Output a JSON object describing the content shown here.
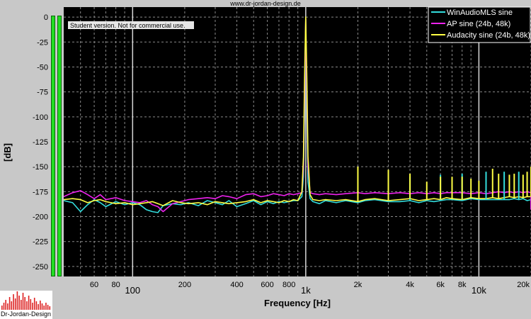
{
  "site": {
    "url": "www.dr-jordan-design.de"
  },
  "brand": {
    "logo_text": "Dr-Jordan-Design"
  },
  "notice": {
    "student": "Student version. Not for commercial use."
  },
  "colors": {
    "plot_bg": "#000000",
    "grid": "#8a8a8a",
    "grid_major": "#d8d8d8",
    "frame_bg": "#c8c8c8",
    "meter": "#22dd22"
  },
  "chart_data": {
    "type": "line",
    "title": "",
    "xlabel": "Frequency [Hz]",
    "ylabel": "[dB]",
    "xscale": "log",
    "xlim": [
      40,
      20000
    ],
    "ylim": [
      -260,
      10
    ],
    "grid": true,
    "legend_position": "top-right",
    "y_ticks": [
      0,
      -25,
      -50,
      -75,
      -100,
      -125,
      -150,
      -175,
      -200,
      -225,
      -250
    ],
    "y_tick_labels": [
      "0",
      "-25",
      "-50",
      "-75",
      "-100",
      "-125",
      "-150",
      "-175",
      "-200",
      "-225",
      "-250"
    ],
    "x_ticks": [
      60,
      80,
      100,
      200,
      400,
      600,
      800,
      1000,
      2000,
      4000,
      6000,
      8000,
      10000,
      20000
    ],
    "x_tick_labels": [
      "60",
      "80",
      "100",
      "200",
      "400",
      "600",
      "800",
      "1k",
      "2k",
      "4k",
      "6k",
      "8k",
      "10k",
      "20k"
    ],
    "x_major_ticks": [
      100,
      1000,
      10000
    ],
    "series": [
      {
        "name": "WinAudioMLS sine",
        "color": "#33dddd",
        "x": [
          40,
          45,
          50,
          55,
          60,
          65,
          70,
          80,
          90,
          100,
          110,
          120,
          130,
          140,
          150,
          170,
          190,
          210,
          240,
          270,
          300,
          330,
          360,
          400,
          450,
          500,
          550,
          600,
          650,
          700,
          750,
          800,
          850,
          900,
          950,
          970,
          985,
          1000,
          1015,
          1030,
          1060,
          1100,
          1200,
          1300,
          1500,
          1700,
          2000,
          2200,
          2500,
          3000,
          3500,
          4000,
          4500,
          5000,
          5500,
          6000,
          6500,
          7000,
          8000,
          9000,
          10000,
          11000,
          12000,
          13000,
          14000,
          15000,
          16000,
          17000,
          18000,
          19000,
          20000
        ],
        "y": [
          -184,
          -186,
          -195,
          -188,
          -183,
          -186,
          -190,
          -185,
          -188,
          -186,
          -188,
          -193,
          -195,
          -196,
          -189,
          -187,
          -188,
          -186,
          -189,
          -184,
          -186,
          -188,
          -184,
          -190,
          -187,
          -184,
          -188,
          -185,
          -187,
          -185,
          -186,
          -185,
          -184,
          -184,
          -180,
          -160,
          -100,
          -3,
          -100,
          -165,
          -182,
          -185,
          -187,
          -184,
          -186,
          -184,
          -186,
          -184,
          -183,
          -185,
          -185,
          -184,
          -186,
          -184,
          -185,
          -184,
          -183,
          -183,
          -184,
          -182,
          -183,
          -183,
          -183,
          -183,
          -183,
          -183,
          -182,
          -183,
          -182,
          -184,
          -183
        ]
      },
      {
        "name": "AP sine (24b, 48k)",
        "color": "#ee22ee",
        "x": [
          40,
          45,
          50,
          55,
          60,
          65,
          70,
          80,
          90,
          100,
          110,
          120,
          130,
          140,
          150,
          170,
          190,
          210,
          240,
          270,
          300,
          330,
          360,
          400,
          450,
          500,
          550,
          600,
          650,
          700,
          750,
          800,
          850,
          900,
          950,
          970,
          985,
          1000,
          1015,
          1030,
          1060,
          1100,
          1200,
          1300,
          1500,
          1700,
          2000,
          2200,
          2500,
          3000,
          3500,
          4000,
          4500,
          5000,
          5500,
          6000,
          6500,
          7000,
          8000,
          9000,
          10000,
          11000,
          12000,
          13000,
          14000,
          15000,
          16000,
          17000,
          18000,
          19000,
          20000
        ],
        "y": [
          -180,
          -176,
          -174,
          -178,
          -182,
          -178,
          -183,
          -181,
          -184,
          -185,
          -186,
          -184,
          -188,
          -190,
          -195,
          -187,
          -185,
          -183,
          -182,
          -181,
          -182,
          -179,
          -180,
          -182,
          -178,
          -177,
          -180,
          -179,
          -177,
          -178,
          -179,
          -177,
          -178,
          -177,
          -176,
          -150,
          -80,
          -2,
          -80,
          -150,
          -176,
          -177,
          -178,
          -177,
          -178,
          -177,
          -176,
          -177,
          -176,
          -177,
          -176,
          -177,
          -176,
          -177,
          -176,
          -177,
          -176,
          -176,
          -176,
          -177,
          -176,
          -177,
          -176,
          -175,
          -176,
          -175,
          -176,
          -175,
          -176,
          -175,
          -176
        ]
      },
      {
        "name": "Audacity sine (24b, 48k)",
        "color": "#ffff44",
        "x": [
          40,
          45,
          50,
          55,
          60,
          65,
          70,
          80,
          90,
          100,
          110,
          120,
          130,
          140,
          150,
          170,
          190,
          210,
          240,
          270,
          300,
          330,
          360,
          400,
          450,
          500,
          550,
          600,
          650,
          700,
          750,
          800,
          850,
          900,
          950,
          970,
          985,
          1000,
          1015,
          1030,
          1060,
          1100,
          1200,
          1300,
          1500,
          1700,
          2000,
          2200,
          2500,
          3000,
          3500,
          4000,
          4500,
          5000,
          5500,
          6000,
          6500,
          7000,
          8000,
          9000,
          10000,
          11000,
          12000,
          13000,
          14000,
          15000,
          16000,
          17000,
          18000,
          19000,
          20000
        ],
        "y": [
          -183,
          -182,
          -183,
          -186,
          -184,
          -183,
          -185,
          -187,
          -186,
          -188,
          -187,
          -186,
          -185,
          -187,
          -189,
          -184,
          -186,
          -187,
          -186,
          -188,
          -185,
          -186,
          -187,
          -186,
          -185,
          -183,
          -186,
          -184,
          -185,
          -186,
          -184,
          -185,
          -183,
          -184,
          -175,
          -140,
          -60,
          0,
          -60,
          -140,
          -178,
          -183,
          -184,
          -183,
          -184,
          -183,
          -185,
          -183,
          -182,
          -184,
          -183,
          -182,
          -184,
          -183,
          -182,
          -183,
          -181,
          -182,
          -183,
          -181,
          -182,
          -182,
          -181,
          -182,
          -181,
          -180,
          -181,
          -180,
          -181,
          -180,
          -180
        ]
      }
    ],
    "spurs": [
      {
        "series": 2,
        "x": 2000,
        "y": -150
      },
      {
        "series": 2,
        "x": 3000,
        "y": -153
      },
      {
        "series": 0,
        "x": 4000,
        "y": -160
      },
      {
        "series": 2,
        "x": 4000,
        "y": -157
      },
      {
        "series": 2,
        "x": 5000,
        "y": -165
      },
      {
        "series": 0,
        "x": 6000,
        "y": -158
      },
      {
        "series": 2,
        "x": 6000,
        "y": -160
      },
      {
        "series": 2,
        "x": 7000,
        "y": -160
      },
      {
        "series": 0,
        "x": 8000,
        "y": -157
      },
      {
        "series": 2,
        "x": 8000,
        "y": -160
      },
      {
        "series": 2,
        "x": 9000,
        "y": -162
      },
      {
        "series": 2,
        "x": 10000,
        "y": -164
      },
      {
        "series": 0,
        "x": 11000,
        "y": -155
      },
      {
        "series": 2,
        "x": 12000,
        "y": -152
      },
      {
        "series": 2,
        "x": 13000,
        "y": -157
      },
      {
        "series": 0,
        "x": 14000,
        "y": -155
      },
      {
        "series": 2,
        "x": 15000,
        "y": -158
      },
      {
        "series": 2,
        "x": 16000,
        "y": -157
      },
      {
        "series": 0,
        "x": 17000,
        "y": -155
      },
      {
        "series": 2,
        "x": 18000,
        "y": -158
      },
      {
        "series": 2,
        "x": 19000,
        "y": -155
      },
      {
        "series": 1,
        "x": 20000,
        "y": -193
      },
      {
        "series": 2,
        "x": 20000,
        "y": -150
      }
    ]
  }
}
